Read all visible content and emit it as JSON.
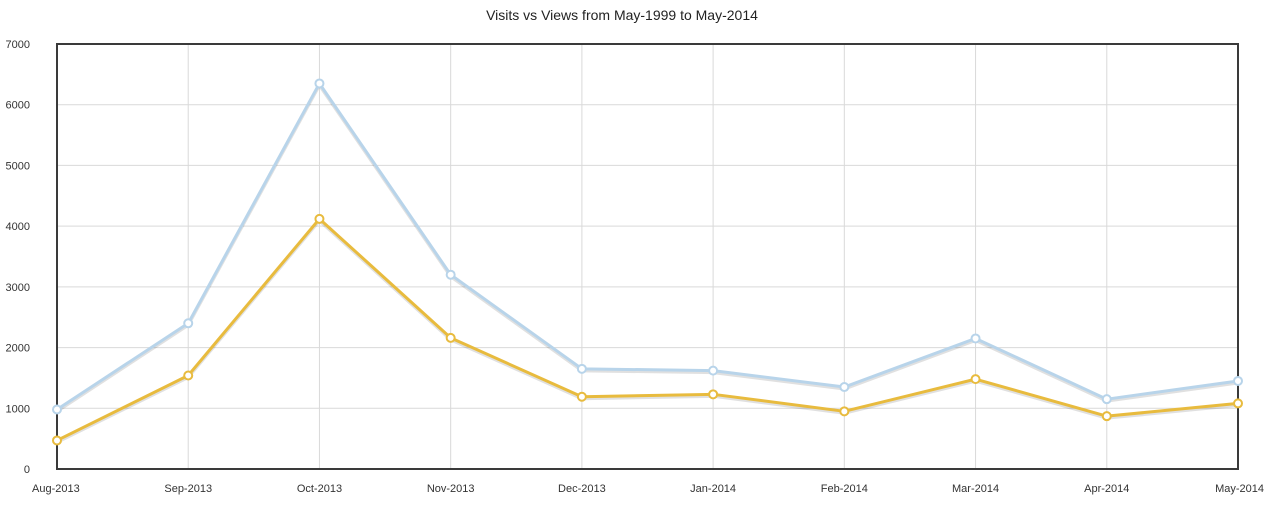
{
  "chart_data": {
    "type": "line",
    "title": "Visits vs Views from May-1999 to May-2014",
    "xlabel": "",
    "ylabel": "",
    "categories": [
      "Aug-2013",
      "Sep-2013",
      "Oct-2013",
      "Nov-2013",
      "Dec-2013",
      "Jan-2014",
      "Feb-2014",
      "Mar-2014",
      "Apr-2014",
      "May-2014"
    ],
    "ylim": [
      0,
      7000
    ],
    "yticks": [
      0,
      1000,
      2000,
      3000,
      4000,
      5000,
      6000,
      7000
    ],
    "grid": true,
    "legend": "none",
    "series": [
      {
        "values": [
          980,
          2400,
          6350,
          3200,
          1650,
          1620,
          1350,
          2150,
          1150,
          1450
        ],
        "color": "#b8d4ea"
      },
      {
        "values": [
          470,
          1540,
          4120,
          2160,
          1190,
          1230,
          950,
          1480,
          870,
          1080
        ],
        "color": "#e8bb3e"
      }
    ]
  }
}
